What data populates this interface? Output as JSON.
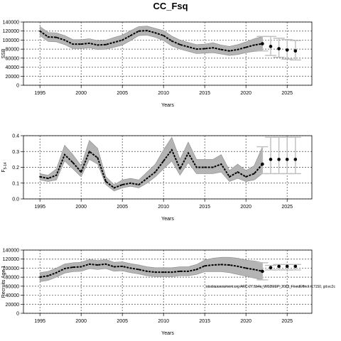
{
  "title": "CC_Fsq",
  "chart_data": [
    {
      "type": "line",
      "ylabel": "SSB",
      "xlabel": "Years",
      "xlim": [
        1993,
        2028
      ],
      "ylim": [
        0,
        140000
      ],
      "xticks": [
        1995,
        2000,
        2005,
        2010,
        2015,
        2020,
        2025
      ],
      "yticks": [
        0,
        20000,
        40000,
        60000,
        80000,
        100000,
        120000,
        140000
      ],
      "ytick_labels": [
        "0",
        "20000",
        "40000",
        "60000",
        "80000",
        "100000",
        "120000",
        "140000"
      ],
      "grid": true,
      "x": [
        1995,
        1996,
        1997,
        1998,
        1999,
        2000,
        2001,
        2002,
        2003,
        2004,
        2005,
        2006,
        2007,
        2008,
        2009,
        2010,
        2011,
        2012,
        2013,
        2014,
        2015,
        2016,
        2017,
        2018,
        2019,
        2020,
        2021,
        2022
      ],
      "values": [
        120000,
        107000,
        106000,
        100000,
        91000,
        91000,
        93000,
        89000,
        90000,
        95000,
        100000,
        110000,
        120000,
        121000,
        116000,
        110000,
        98000,
        90000,
        85000,
        80000,
        81000,
        83000,
        79000,
        76000,
        79000,
        84000,
        89000,
        92000
      ],
      "lower": [
        110000,
        97000,
        96000,
        90000,
        81000,
        81000,
        83000,
        79000,
        80000,
        84000,
        89000,
        99000,
        110000,
        111000,
        106000,
        99000,
        87000,
        80000,
        75000,
        70000,
        71000,
        72000,
        69000,
        66000,
        68000,
        72000,
        75000,
        76000
      ],
      "upper": [
        130000,
        117000,
        116000,
        110000,
        101000,
        101000,
        103000,
        99000,
        100000,
        106000,
        111000,
        121000,
        130000,
        131000,
        126000,
        121000,
        109000,
        100000,
        95000,
        90000,
        91000,
        94000,
        89000,
        86000,
        90000,
        96000,
        103000,
        108000
      ],
      "forecast": {
        "x": [
          2022,
          2023,
          2024,
          2025,
          2026
        ],
        "values": [
          92000,
          86000,
          81000,
          78000,
          76000
        ],
        "lower": [
          76000,
          66000,
          62000,
          58000,
          56000
        ],
        "upper": [
          108000,
          108000,
          104000,
          101000,
          99000
        ]
      }
    },
    {
      "type": "line",
      "ylabel": "F5-14",
      "ylabel_main": "F",
      "ylabel_sub": "5-14",
      "xlabel": "Years",
      "xlim": [
        1993,
        2028
      ],
      "ylim": [
        0,
        0.4
      ],
      "xticks": [
        1995,
        2000,
        2005,
        2010,
        2015,
        2020,
        2025
      ],
      "yticks": [
        0,
        0.1,
        0.2,
        0.3,
        0.4
      ],
      "ytick_labels": [
        "0.0",
        "0.1",
        "0.2",
        "0.3",
        "0.4"
      ],
      "grid": true,
      "x": [
        1995,
        1996,
        1997,
        1998,
        1999,
        2000,
        2001,
        2002,
        2003,
        2004,
        2005,
        2006,
        2007,
        2008,
        2009,
        2010,
        2011,
        2012,
        2013,
        2014,
        2015,
        2016,
        2017,
        2018,
        2019,
        2020,
        2021,
        2022
      ],
      "values": [
        0.14,
        0.13,
        0.15,
        0.28,
        0.23,
        0.17,
        0.3,
        0.26,
        0.11,
        0.07,
        0.09,
        0.1,
        0.09,
        0.13,
        0.17,
        0.24,
        0.31,
        0.19,
        0.29,
        0.2,
        0.2,
        0.2,
        0.22,
        0.14,
        0.17,
        0.14,
        0.16,
        0.22
      ],
      "lower": [
        0.12,
        0.11,
        0.12,
        0.24,
        0.19,
        0.14,
        0.25,
        0.22,
        0.09,
        0.05,
        0.07,
        0.08,
        0.07,
        0.1,
        0.14,
        0.19,
        0.24,
        0.15,
        0.23,
        0.16,
        0.16,
        0.16,
        0.17,
        0.11,
        0.13,
        0.11,
        0.12,
        0.16
      ],
      "upper": [
        0.16,
        0.15,
        0.19,
        0.34,
        0.28,
        0.21,
        0.37,
        0.32,
        0.14,
        0.09,
        0.12,
        0.13,
        0.12,
        0.17,
        0.22,
        0.31,
        0.39,
        0.25,
        0.36,
        0.25,
        0.25,
        0.25,
        0.28,
        0.18,
        0.22,
        0.18,
        0.21,
        0.33
      ],
      "forecast": {
        "x": [
          2022,
          2023,
          2024,
          2025,
          2026
        ],
        "values": [
          0.22,
          0.25,
          0.25,
          0.25,
          0.25
        ],
        "lower": [
          0.16,
          0.16,
          0.16,
          0.16,
          0.16
        ],
        "upper": [
          0.33,
          0.39,
          0.39,
          0.39,
          0.39
        ]
      }
    },
    {
      "type": "line",
      "ylabel": "Recruits Age 1",
      "xlabel": "Years",
      "xlim": [
        1993,
        2028
      ],
      "ylim": [
        0,
        140000
      ],
      "xticks": [
        1995,
        2000,
        2005,
        2010,
        2015,
        2020,
        2025
      ],
      "yticks": [
        0,
        20000,
        40000,
        60000,
        80000,
        100000,
        120000,
        140000
      ],
      "ytick_labels": [
        "0",
        "20000",
        "40000",
        "60000",
        "80000",
        "100000",
        "120000",
        "140000"
      ],
      "grid": true,
      "x": [
        1995,
        1996,
        1997,
        1998,
        1999,
        2000,
        2001,
        2002,
        2003,
        2004,
        2005,
        2006,
        2007,
        2008,
        2009,
        2010,
        2011,
        2012,
        2013,
        2014,
        2015,
        2016,
        2017,
        2018,
        2019,
        2020,
        2021,
        2022
      ],
      "values": [
        80000,
        83000,
        90000,
        99000,
        102000,
        103000,
        109000,
        107000,
        109000,
        103000,
        104000,
        100000,
        97000,
        93000,
        91000,
        91000,
        91000,
        93000,
        93000,
        97000,
        105000,
        107000,
        108000,
        107000,
        104000,
        100000,
        97000,
        93000
      ],
      "lower": [
        70000,
        73000,
        80000,
        89000,
        92000,
        93000,
        99000,
        97000,
        99000,
        93000,
        94000,
        90000,
        87000,
        83000,
        81000,
        81000,
        81000,
        83000,
        83000,
        86000,
        92000,
        92000,
        92000,
        90000,
        86000,
        82000,
        78000,
        74000
      ],
      "upper": [
        90000,
        93000,
        100000,
        109000,
        112000,
        113000,
        119000,
        117000,
        119000,
        113000,
        114000,
        110000,
        107000,
        103000,
        101000,
        101000,
        101000,
        103000,
        103000,
        108000,
        118000,
        122000,
        124000,
        124000,
        122000,
        118000,
        116000,
        112000
      ],
      "forecast": {
        "x": [
          2022,
          2023,
          2024,
          2025,
          2026
        ],
        "values": [
          93000,
          101000,
          104000,
          104000,
          104000
        ],
        "lower": [
          74000,
          96000,
          96000,
          96000,
          96000
        ],
        "upper": [
          112000,
          106000,
          108000,
          108000,
          108000
        ]
      },
      "annotation": "stockassessment.org ARC-27.5b4a_WGDEEP_2023_FixedEffect r17150, git:ec2c"
    }
  ]
}
